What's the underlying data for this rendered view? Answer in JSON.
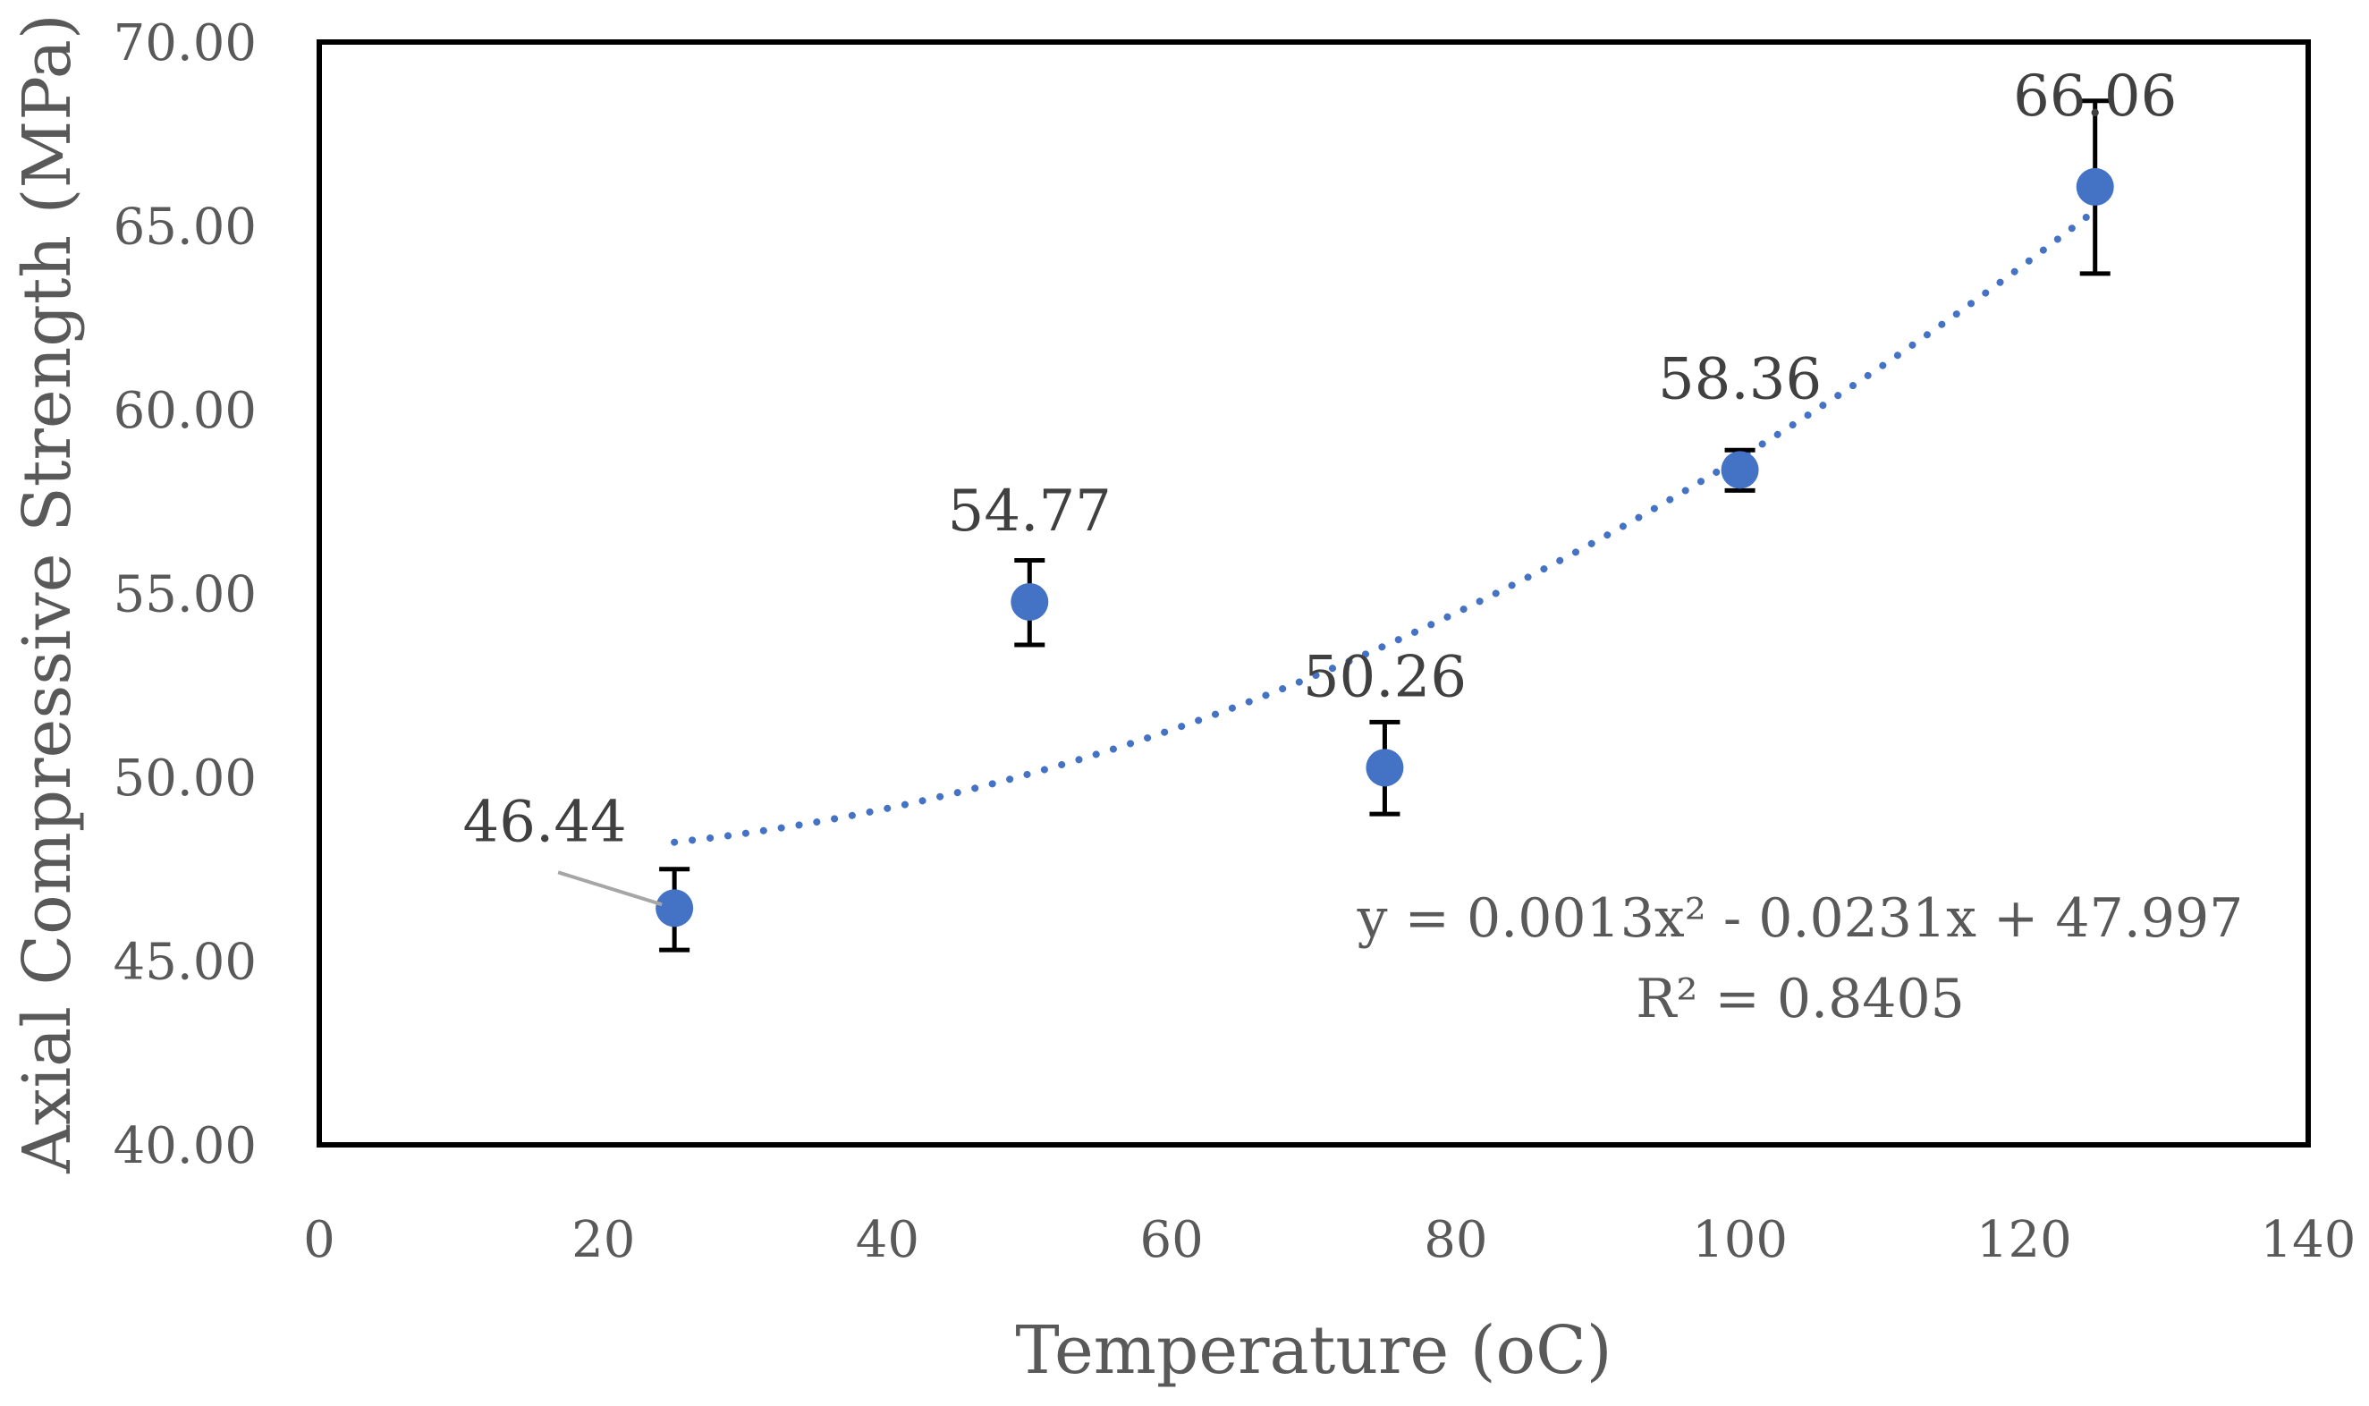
{
  "chart_data": {
    "type": "scatter",
    "title": "",
    "xlabel": "Temperature (oC)",
    "ylabel": "Axial Compressive Strength (MPa)",
    "xlim": [
      0,
      140
    ],
    "ylim": [
      40,
      70
    ],
    "x_ticks": [
      0,
      20,
      40,
      60,
      80,
      100,
      120,
      140
    ],
    "y_ticks": [
      40,
      45,
      50,
      55,
      60,
      65,
      70
    ],
    "y_tick_labels": [
      "40.00",
      "45.00",
      "50.00",
      "55.00",
      "60.00",
      "65.00",
      "70.00"
    ],
    "grid": false,
    "legend": "none",
    "marker_color": "#4472C4",
    "series": [
      {
        "name": "Axial Compressive Strength",
        "x": [
          25,
          50,
          75,
          100,
          125
        ],
        "y": [
          46.44,
          54.77,
          50.26,
          58.36,
          66.06
        ],
        "error_low": [
          45.3,
          53.6,
          49.0,
          57.8,
          63.7
        ],
        "error_high": [
          47.5,
          55.9,
          51.5,
          58.9,
          68.4
        ],
        "labels": [
          "46.44",
          "54.77",
          "50.26",
          "58.36",
          "66.06"
        ]
      }
    ],
    "trendline": {
      "type": "polynomial",
      "coefficients": [
        0.0013,
        -0.0231,
        47.997
      ],
      "x_range": [
        25,
        125
      ],
      "equation": "y = 0.0013x² - 0.0231x + 47.997",
      "r_squared": "R² = 0.8405"
    }
  }
}
